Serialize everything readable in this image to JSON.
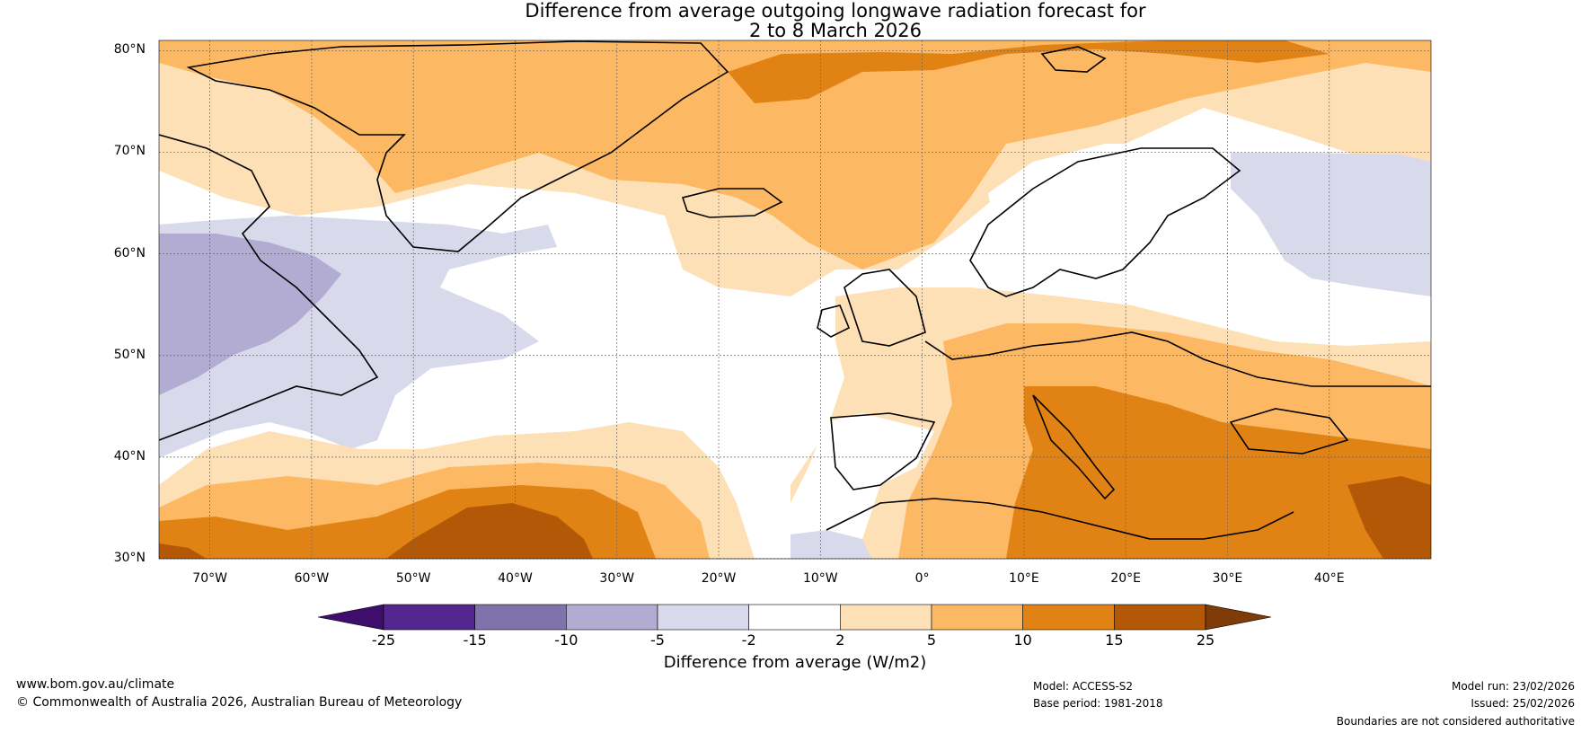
{
  "title": {
    "line1": "Difference from average outgoing longwave radiation forecast for",
    "line2": "2 to 8 March 2026"
  },
  "map": {
    "lat_labels": [
      "80°N",
      "70°N",
      "60°N",
      "50°N",
      "40°N",
      "30°N"
    ],
    "lon_labels": [
      "70°W",
      "60°W",
      "50°W",
      "40°W",
      "30°W",
      "20°W",
      "10°W",
      "0°",
      "10°E",
      "20°E",
      "30°E",
      "40°E"
    ],
    "lat_values": [
      80,
      70,
      60,
      50,
      40,
      30
    ],
    "lon_values": [
      -70,
      -60,
      -50,
      -40,
      -30,
      -20,
      -10,
      0,
      10,
      20,
      30,
      40
    ],
    "extent": {
      "lon_min": -75,
      "lon_max": 50,
      "lat_min": 30,
      "lat_max": 81
    }
  },
  "colorbar": {
    "ticks": [
      "-25",
      "-15",
      "-10",
      "-5",
      "-2",
      "2",
      "5",
      "10",
      "15",
      "25"
    ],
    "colors": [
      "#3f0d6b",
      "#54278f",
      "#8073ac",
      "#b2abd2",
      "#d8daeb",
      "#ffffff",
      "#fee0b6",
      "#fdb863",
      "#e08214",
      "#b35806",
      "#7f3b08"
    ],
    "label": "Difference from average (W/m2)"
  },
  "footer": {
    "website": "www.bom.gov.au/climate",
    "copyright": "© Commonwealth of Australia 2026, Australian Bureau of Meteorology",
    "model": "Model: ACCESS-S2",
    "base_period": "Base period: 1981-2018",
    "model_run": "Model run: 23/02/2026",
    "issued": "Issued: 25/02/2026",
    "disclaimer": "Boundaries are not considered authoritative"
  }
}
